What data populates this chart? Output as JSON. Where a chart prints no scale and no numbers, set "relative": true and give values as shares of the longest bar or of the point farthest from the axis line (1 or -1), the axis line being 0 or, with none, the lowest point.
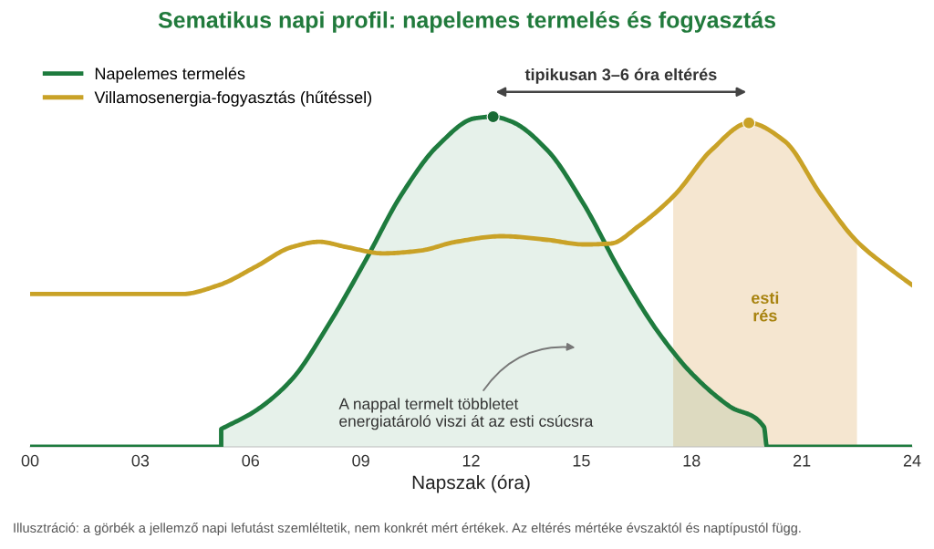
{
  "chart_data": {
    "type": "line",
    "title": "Sematikus napi profil: napelemes termelés és fogyasztás",
    "xlabel": "Napszak (óra)",
    "relative": true,
    "xlim": [
      0,
      24
    ],
    "xticks": [
      {
        "value": 0,
        "label": "00"
      },
      {
        "value": 3,
        "label": "03"
      },
      {
        "value": 6,
        "label": "06"
      },
      {
        "value": 9,
        "label": "09"
      },
      {
        "value": 12,
        "label": "12"
      },
      {
        "value": 15,
        "label": "15"
      },
      {
        "value": 18,
        "label": "18"
      },
      {
        "value": 21,
        "label": "21"
      },
      {
        "value": 24,
        "label": "24"
      }
    ],
    "series": [
      {
        "name": "Napelemes termelés",
        "type": "area",
        "color": "#1e7b3e",
        "x": [
          0,
          5.2,
          5.2,
          6.13,
          7.12,
          8.11,
          9.1,
          10.1,
          11.1,
          12.1,
          12.6,
          13.08,
          14.07,
          15.06,
          16.06,
          17.05,
          18.04,
          19.03,
          19.97,
          20.05,
          24
        ],
        "values": [
          0,
          0,
          0.054,
          0.109,
          0.204,
          0.368,
          0.559,
          0.763,
          0.913,
          0.995,
          1,
          0.986,
          0.899,
          0.736,
          0.531,
          0.354,
          0.218,
          0.123,
          0.06,
          0,
          0
        ]
      },
      {
        "name": "Villamosenergia-fogyasztás (hűtéssel)",
        "type": "line",
        "color": "#c9a227",
        "x": [
          0,
          4.14,
          5.14,
          6.13,
          7.12,
          7.87,
          8.61,
          9.61,
          10.6,
          11.59,
          12.83,
          14.07,
          15.07,
          15.81,
          16.55,
          17.54,
          18.54,
          19.56,
          20.53,
          21.52,
          22.51,
          23.5,
          24
        ],
        "values": [
          0.463,
          0.463,
          0.49,
          0.545,
          0.605,
          0.621,
          0.605,
          0.586,
          0.594,
          0.621,
          0.638,
          0.627,
          0.613,
          0.616,
          0.668,
          0.763,
          0.899,
          0.981,
          0.926,
          0.763,
          0.621,
          0.531,
          0.49
        ]
      },
      {
        "type": "scatter",
        "color": "#186a34",
        "x": [
          12.6
        ],
        "values": [
          1
        ]
      },
      {
        "type": "scatter",
        "color": "#c9a227",
        "x": [
          19.56
        ],
        "values": [
          0.981
        ]
      }
    ],
    "bands": [
      {
        "axis": "x",
        "from": 17.5,
        "to": 22.5,
        "label": "esti\nrés",
        "color": "#f5e6d0"
      }
    ],
    "legend": "top left",
    "annotations": [
      {
        "text": "tipikusan 3–6 óra eltérés"
      },
      {
        "text": "A nappal termelt többletet\nenergiatároló viszi át az esti csúcsra"
      },
      "Illusztráció: a görbék a jellemző napi lefutást szemléltetik, nem konkrét mért értékek. Az eltérés mértéke évszaktól és naptípustól függ."
    ]
  }
}
